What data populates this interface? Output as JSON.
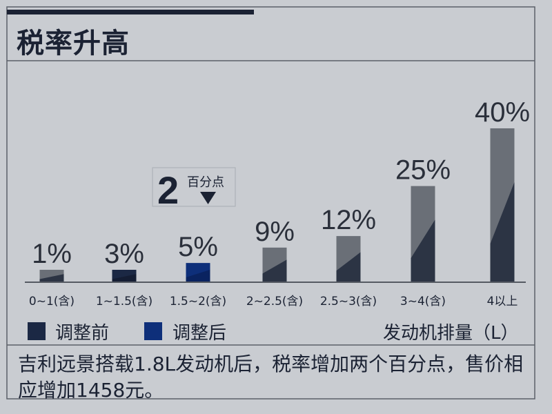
{
  "header": {
    "title": "税率升高"
  },
  "chart_data": {
    "type": "bar",
    "categories": [
      "0~1(含)",
      "1~1.5(含)",
      "1.5~2(含)",
      "2~2.5(含)",
      "2.5~3(含)",
      "3~4(含)",
      "4以上"
    ],
    "values": [
      1,
      3,
      5,
      9,
      12,
      25,
      40
    ],
    "value_labels": [
      "1%",
      "3%",
      "5%",
      "9%",
      "12%",
      "25%",
      "40%"
    ],
    "x_unit_label": "发动机排量（L）",
    "legend": [
      {
        "label": "调整前",
        "color": "#1b2844"
      },
      {
        "label": "调整后",
        "color": "#0e2f7a"
      }
    ],
    "highlight_index": 2,
    "annotation": {
      "number": "2",
      "text": "百分点"
    },
    "colors": {
      "base": "#6a6f77",
      "overlay": "#2c3444",
      "pre": "#1b2844",
      "post": "#0e2f7a"
    }
  },
  "footer_note": "吉利远景搭载1.8L发动机后，税率增加两个百分点，售价相应增加1458元。"
}
